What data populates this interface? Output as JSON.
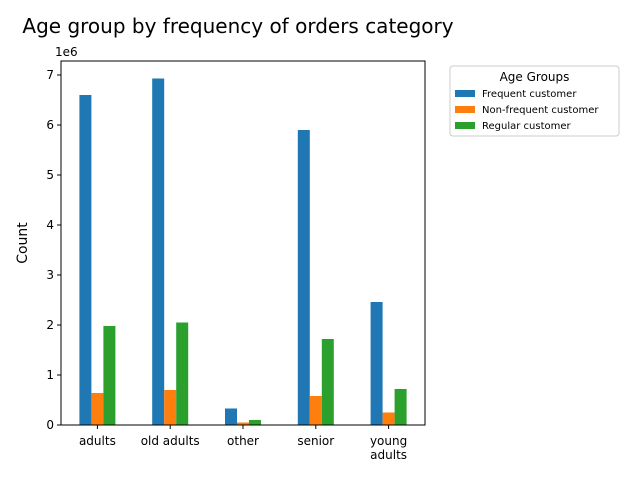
{
  "chart_data": {
    "type": "bar",
    "title": "Age group by frequency of orders category",
    "xlabel": "",
    "ylabel": "Count",
    "y_offset_label": "1e6",
    "ylim": [
      0,
      7.28
    ],
    "y_ticks": [
      0,
      1,
      2,
      3,
      4,
      5,
      6,
      7
    ],
    "categories": [
      "adults",
      "old adults",
      "other",
      "senior",
      "young adults"
    ],
    "category_display": [
      [
        "adults"
      ],
      [
        "old adults"
      ],
      [
        "other"
      ],
      [
        "senior"
      ],
      [
        "young",
        "adults"
      ]
    ],
    "series": [
      {
        "name": "Frequent customer",
        "color": "#1f77b4",
        "values": [
          6.6,
          6.93,
          0.33,
          5.9,
          2.46
        ]
      },
      {
        "name": "Non-frequent customer",
        "color": "#ff7f0e",
        "values": [
          0.64,
          0.7,
          0.05,
          0.58,
          0.25
        ]
      },
      {
        "name": "Regular customer",
        "color": "#2ca02c",
        "values": [
          1.98,
          2.05,
          0.1,
          1.72,
          0.72
        ]
      }
    ],
    "legend": {
      "title": "Age Groups",
      "placement": "outside-upper-right"
    },
    "grid": false
  }
}
